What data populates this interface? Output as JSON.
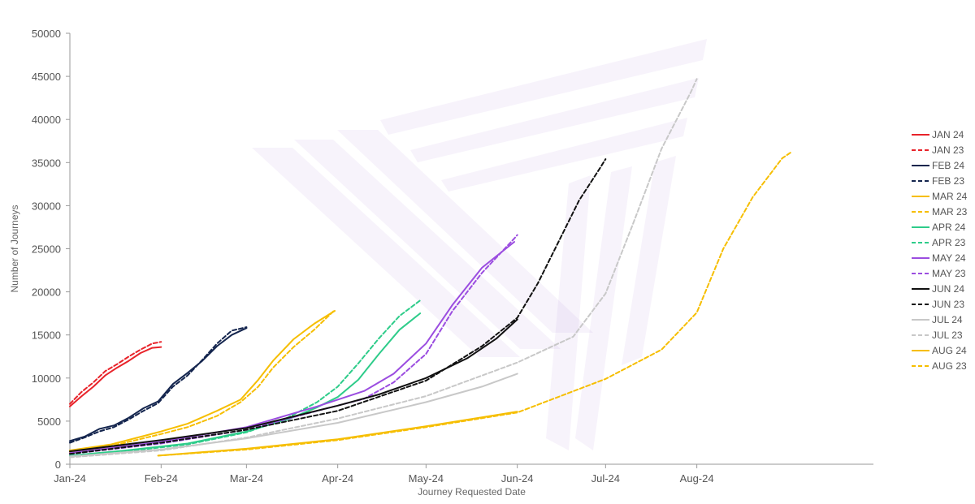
{
  "chart_data": {
    "type": "line",
    "title": "",
    "xlabel": "Journey Requested Date",
    "ylabel": "Number of Journeys",
    "ylim": [
      0,
      50000
    ],
    "xlim": [
      "2024-01-01",
      "2024-09-30"
    ],
    "yticks": [
      0,
      5000,
      10000,
      15000,
      20000,
      25000,
      30000,
      35000,
      40000,
      45000,
      50000
    ],
    "xticks": [
      {
        "date": "2024-01-01",
        "label": "Jan-24"
      },
      {
        "date": "2024-02-01",
        "label": "Feb-24"
      },
      {
        "date": "2024-03-01",
        "label": "Mar-24"
      },
      {
        "date": "2024-04-01",
        "label": "Apr-24"
      },
      {
        "date": "2024-05-01",
        "label": "May-24"
      },
      {
        "date": "2024-06-01",
        "label": "Jun-24"
      },
      {
        "date": "2024-07-01",
        "label": "Jul-24"
      },
      {
        "date": "2024-08-01",
        "label": "Aug-24"
      }
    ],
    "grid": false,
    "legend": "right",
    "series": [
      {
        "name": "JAN 24",
        "color": "#e8232a",
        "dash": false,
        "points": [
          [
            "2024-01-01",
            6700
          ],
          [
            "2024-01-05",
            7900
          ],
          [
            "2024-01-09",
            9000
          ],
          [
            "2024-01-13",
            10300
          ],
          [
            "2024-01-17",
            11200
          ],
          [
            "2024-01-21",
            12000
          ],
          [
            "2024-01-25",
            12900
          ],
          [
            "2024-01-29",
            13500
          ],
          [
            "2024-02-01",
            13600
          ]
        ]
      },
      {
        "name": "JAN 23",
        "color": "#e8232a",
        "dash": true,
        "points": [
          [
            "2024-01-01",
            7000
          ],
          [
            "2024-01-05",
            8400
          ],
          [
            "2024-01-09",
            9500
          ],
          [
            "2024-01-13",
            10800
          ],
          [
            "2024-01-17",
            11600
          ],
          [
            "2024-01-21",
            12500
          ],
          [
            "2024-01-25",
            13300
          ],
          [
            "2024-01-29",
            14000
          ],
          [
            "2024-02-01",
            14200
          ]
        ]
      },
      {
        "name": "FEB 24",
        "color": "#14254e",
        "dash": false,
        "points": [
          [
            "2024-01-01",
            2700
          ],
          [
            "2024-01-06",
            3200
          ],
          [
            "2024-01-11",
            4100
          ],
          [
            "2024-01-16",
            4500
          ],
          [
            "2024-01-21",
            5400
          ],
          [
            "2024-01-26",
            6500
          ],
          [
            "2024-01-31",
            7300
          ],
          [
            "2024-02-05",
            9300
          ],
          [
            "2024-02-10",
            10600
          ],
          [
            "2024-02-15",
            12000
          ],
          [
            "2024-02-20",
            13700
          ],
          [
            "2024-02-25",
            15000
          ],
          [
            "2024-03-01",
            15800
          ]
        ]
      },
      {
        "name": "FEB 23",
        "color": "#14254e",
        "dash": true,
        "points": [
          [
            "2024-01-01",
            2500
          ],
          [
            "2024-01-06",
            3100
          ],
          [
            "2024-01-11",
            3800
          ],
          [
            "2024-01-16",
            4300
          ],
          [
            "2024-01-21",
            5200
          ],
          [
            "2024-01-26",
            6200
          ],
          [
            "2024-01-31",
            7100
          ],
          [
            "2024-02-05",
            9000
          ],
          [
            "2024-02-10",
            10300
          ],
          [
            "2024-02-15",
            12100
          ],
          [
            "2024-02-20",
            14000
          ],
          [
            "2024-02-25",
            15500
          ],
          [
            "2024-03-01",
            15900
          ]
        ]
      },
      {
        "name": "MAR 24",
        "color": "#f6be00",
        "dash": false,
        "points": [
          [
            "2024-01-01",
            1600
          ],
          [
            "2024-01-15",
            2300
          ],
          [
            "2024-02-01",
            3800
          ],
          [
            "2024-02-10",
            4700
          ],
          [
            "2024-02-20",
            6200
          ],
          [
            "2024-02-28",
            7500
          ],
          [
            "2024-03-05",
            9800
          ],
          [
            "2024-03-10",
            12000
          ],
          [
            "2024-03-17",
            14500
          ],
          [
            "2024-03-24",
            16300
          ],
          [
            "2024-03-31",
            17800
          ]
        ]
      },
      {
        "name": "MAR 23",
        "color": "#f6be00",
        "dash": true,
        "points": [
          [
            "2024-01-01",
            1400
          ],
          [
            "2024-01-15",
            2100
          ],
          [
            "2024-02-01",
            3500
          ],
          [
            "2024-02-10",
            4300
          ],
          [
            "2024-02-20",
            5600
          ],
          [
            "2024-02-28",
            7200
          ],
          [
            "2024-03-05",
            9000
          ],
          [
            "2024-03-10",
            11200
          ],
          [
            "2024-03-17",
            13600
          ],
          [
            "2024-03-24",
            15600
          ],
          [
            "2024-03-31",
            17900
          ]
        ]
      },
      {
        "name": "APR 24",
        "color": "#2ecc8a",
        "dash": false,
        "points": [
          [
            "2024-01-01",
            1000
          ],
          [
            "2024-01-20",
            1600
          ],
          [
            "2024-02-10",
            2400
          ],
          [
            "2024-03-01",
            3800
          ],
          [
            "2024-03-15",
            5200
          ],
          [
            "2024-03-25",
            6600
          ],
          [
            "2024-04-01",
            7800
          ],
          [
            "2024-04-08",
            9800
          ],
          [
            "2024-04-15",
            12800
          ],
          [
            "2024-04-22",
            15600
          ],
          [
            "2024-04-29",
            17500
          ]
        ]
      },
      {
        "name": "APR 23",
        "color": "#2ecc8a",
        "dash": true,
        "points": [
          [
            "2024-01-01",
            900
          ],
          [
            "2024-01-20",
            1500
          ],
          [
            "2024-02-10",
            2300
          ],
          [
            "2024-03-01",
            3700
          ],
          [
            "2024-03-15",
            5400
          ],
          [
            "2024-03-25",
            7200
          ],
          [
            "2024-04-01",
            9000
          ],
          [
            "2024-04-08",
            11700
          ],
          [
            "2024-04-15",
            14600
          ],
          [
            "2024-04-22",
            17200
          ],
          [
            "2024-04-29",
            19000
          ]
        ]
      },
      {
        "name": "MAY 24",
        "color": "#9b4de0",
        "dash": false,
        "points": [
          [
            "2024-01-01",
            1300
          ],
          [
            "2024-02-01",
            2600
          ],
          [
            "2024-03-01",
            4300
          ],
          [
            "2024-03-25",
            6700
          ],
          [
            "2024-04-10",
            8500
          ],
          [
            "2024-04-20",
            10500
          ],
          [
            "2024-05-01",
            14000
          ],
          [
            "2024-05-10",
            18500
          ],
          [
            "2024-05-20",
            22800
          ],
          [
            "2024-05-31",
            25800
          ]
        ]
      },
      {
        "name": "MAY 23",
        "color": "#9b4de0",
        "dash": true,
        "points": [
          [
            "2024-01-01",
            1200
          ],
          [
            "2024-02-01",
            2400
          ],
          [
            "2024-03-01",
            4000
          ],
          [
            "2024-03-25",
            6200
          ],
          [
            "2024-04-10",
            7600
          ],
          [
            "2024-04-20",
            9500
          ],
          [
            "2024-05-01",
            12800
          ],
          [
            "2024-05-10",
            17800
          ],
          [
            "2024-05-20",
            22200
          ],
          [
            "2024-05-31",
            26200
          ],
          [
            "2024-06-01",
            26600
          ]
        ]
      },
      {
        "name": "JUN 24",
        "color": "#111111",
        "dash": false,
        "points": [
          [
            "2024-01-01",
            1500
          ],
          [
            "2024-02-01",
            2800
          ],
          [
            "2024-03-01",
            4200
          ],
          [
            "2024-04-01",
            6800
          ],
          [
            "2024-04-15",
            8100
          ],
          [
            "2024-05-01",
            10000
          ],
          [
            "2024-05-15",
            12300
          ],
          [
            "2024-05-25",
            14600
          ],
          [
            "2024-06-01",
            16800
          ]
        ]
      },
      {
        "name": "JUN 23",
        "color": "#111111",
        "dash": true,
        "points": [
          [
            "2024-01-01",
            1200
          ],
          [
            "2024-02-01",
            2500
          ],
          [
            "2024-03-01",
            4000
          ],
          [
            "2024-04-01",
            6200
          ],
          [
            "2024-05-01",
            9700
          ],
          [
            "2024-05-20",
            13700
          ],
          [
            "2024-06-01",
            17000
          ],
          [
            "2024-06-08",
            21000
          ],
          [
            "2024-06-15",
            25800
          ],
          [
            "2024-06-22",
            30600
          ],
          [
            "2024-06-29",
            34300
          ],
          [
            "2024-07-01",
            35400
          ]
        ]
      },
      {
        "name": "JUL 24",
        "color": "#c8c8c8",
        "dash": false,
        "points": [
          [
            "2024-01-01",
            900
          ],
          [
            "2024-02-01",
            1700
          ],
          [
            "2024-03-01",
            3000
          ],
          [
            "2024-04-01",
            4800
          ],
          [
            "2024-05-01",
            7200
          ],
          [
            "2024-05-20",
            9000
          ],
          [
            "2024-06-01",
            10500
          ]
        ]
      },
      {
        "name": "JUL 23",
        "color": "#c8c8c8",
        "dash": true,
        "points": [
          [
            "2024-01-01",
            800
          ],
          [
            "2024-02-01",
            1600
          ],
          [
            "2024-03-01",
            3100
          ],
          [
            "2024-04-01",
            5300
          ],
          [
            "2024-05-01",
            7900
          ],
          [
            "2024-06-01",
            11800
          ],
          [
            "2024-06-20",
            14800
          ],
          [
            "2024-07-01",
            19800
          ],
          [
            "2024-07-10",
            27600
          ],
          [
            "2024-07-20",
            36600
          ],
          [
            "2024-07-30",
            43200
          ],
          [
            "2024-08-01",
            44700
          ]
        ]
      },
      {
        "name": "AUG 24",
        "color": "#f6be00",
        "dash": false,
        "points": [
          [
            "2024-01-31",
            1000
          ],
          [
            "2024-03-01",
            1800
          ],
          [
            "2024-04-01",
            2900
          ],
          [
            "2024-05-01",
            4400
          ],
          [
            "2024-06-01",
            6100
          ]
        ]
      },
      {
        "name": "AUG 23",
        "color": "#f6be00",
        "dash": true,
        "points": [
          [
            "2024-01-31",
            1000
          ],
          [
            "2024-03-01",
            1700
          ],
          [
            "2024-04-01",
            2800
          ],
          [
            "2024-05-01",
            4300
          ],
          [
            "2024-06-01",
            6000
          ],
          [
            "2024-07-01",
            9900
          ],
          [
            "2024-07-20",
            13300
          ],
          [
            "2024-08-01",
            17600
          ],
          [
            "2024-08-10",
            25000
          ],
          [
            "2024-08-20",
            31000
          ],
          [
            "2024-08-30",
            35500
          ],
          [
            "2024-09-02",
            36200
          ]
        ]
      }
    ]
  }
}
